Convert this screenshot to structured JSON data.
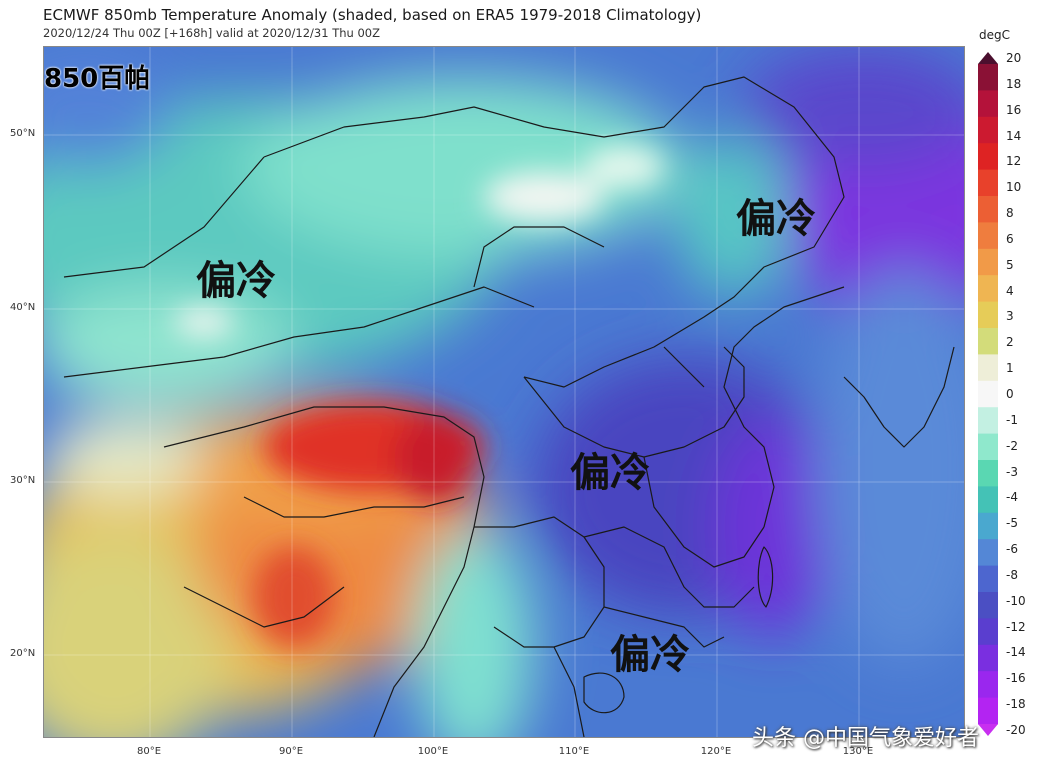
{
  "title": "ECMWF 850mb Temperature Anomaly (shaded, based on ERA5 1979-2018 Climatology)",
  "subtitle": "2020/12/24 Thu 00Z [+168h] valid at 2020/12/31 Thu 00Z",
  "level_label": "850百帕",
  "region_labels": [
    "偏冷",
    "偏冷",
    "偏冷",
    "偏冷"
  ],
  "lat_labels": [
    "50°N",
    "40°N",
    "30°N",
    "20°N"
  ],
  "lon_labels": [
    "80°E",
    "90°E",
    "100°E",
    "110°E",
    "120°E",
    "130°E"
  ],
  "colorbar": {
    "unit": "degC",
    "ticks": [
      "20",
      "18",
      "16",
      "14",
      "12",
      "10",
      "8",
      "6",
      "5",
      "4",
      "3",
      "2",
      "1",
      "0",
      "-1",
      "-2",
      "-3",
      "-4",
      "-5",
      "-6",
      "-8",
      "-10",
      "-12",
      "-14",
      "-16",
      "-18",
      "-20"
    ],
    "colors": [
      "#4b0f2e",
      "#8a1135",
      "#b4123a",
      "#cc1a30",
      "#de2323",
      "#e8412b",
      "#ec5f34",
      "#ef7d3e",
      "#f19a48",
      "#efb552",
      "#e6cc58",
      "#d3dc7a",
      "#eeeed8",
      "#f7f7f7",
      "#c3f0e2",
      "#8fe8cc",
      "#5ad7b2",
      "#44c2b6",
      "#4aa8cf",
      "#5487d6",
      "#4d66cf",
      "#4b4fc3",
      "#5a3ecf",
      "#7a2fe0",
      "#9a27ee",
      "#b324f2",
      "#c82ff0"
    ]
  },
  "watermark": "头条 @中国气象爱好者"
}
